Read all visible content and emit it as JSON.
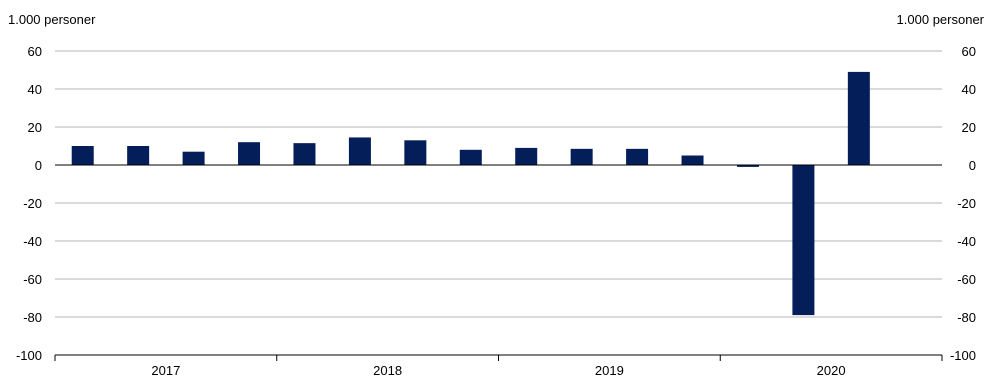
{
  "chart_data": {
    "type": "bar",
    "unit_left": "1.000 personer",
    "unit_right": "1.000 personer",
    "ylim": [
      -100,
      60
    ],
    "y_ticks": [
      60,
      40,
      20,
      0,
      -20,
      -40,
      -60,
      -80,
      -100
    ],
    "y_tick_labels": [
      "60",
      "40",
      "20",
      "0",
      "-20",
      "-40",
      "-60",
      "-80",
      "-100"
    ],
    "year_groups": [
      {
        "label": "2017",
        "quarters": 4
      },
      {
        "label": "2018",
        "quarters": 4
      },
      {
        "label": "2019",
        "quarters": 4
      },
      {
        "label": "2020",
        "quarters": 4
      }
    ],
    "values": [
      10,
      10,
      7,
      12,
      11.5,
      14.5,
      13,
      8,
      9,
      8.5,
      8.5,
      5,
      -1,
      -79,
      49
    ],
    "bar_color": "#041E5A",
    "grid": true,
    "grid_color": "#B4B4B4"
  }
}
